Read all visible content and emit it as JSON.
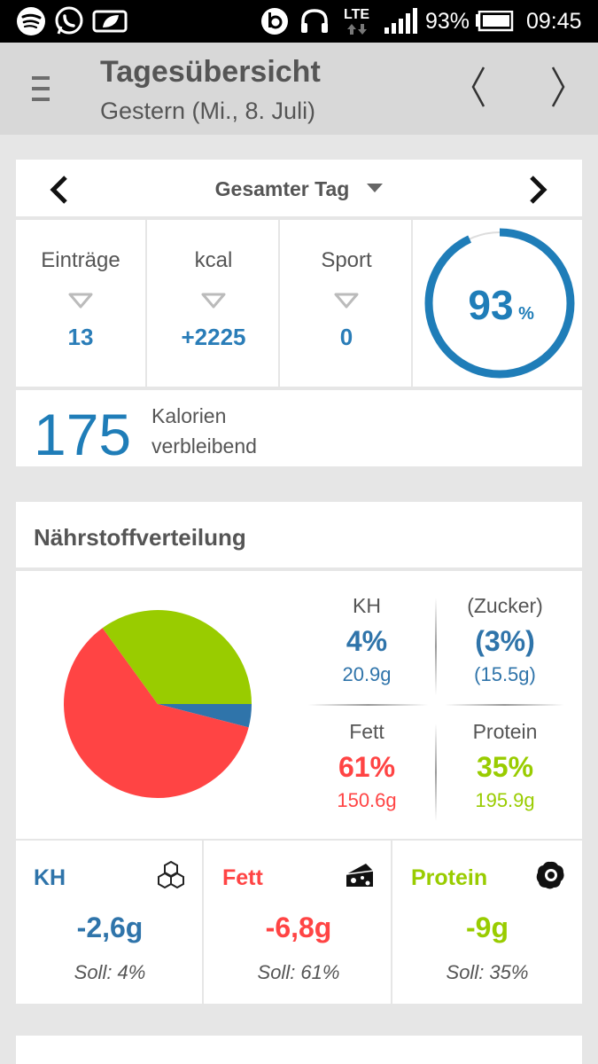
{
  "status_bar": {
    "battery": "93%",
    "time": "09:45",
    "network": "LTE"
  },
  "header": {
    "title": "Tagesübersicht",
    "subtitle": "Gestern (Mi., 8. Juli)"
  },
  "day_selector": {
    "label": "Gesamter Tag"
  },
  "stats": [
    {
      "label": "Einträge",
      "value": "13"
    },
    {
      "label": "kcal",
      "value": "+2225"
    },
    {
      "label": "Sport",
      "value": "0"
    }
  ],
  "progress": {
    "value": "93",
    "unit": "%",
    "fraction": 0.93
  },
  "remaining": {
    "value": "175",
    "line1": "Kalorien",
    "line2": "verbleibend"
  },
  "nutrition": {
    "title": "Nährstoffverteilung",
    "macros": {
      "kh": {
        "label": "KH",
        "pct": "4%",
        "grams": "20.9g"
      },
      "zucker": {
        "label": "(Zucker)",
        "pct": "(3%)",
        "grams": "(15.5g)"
      },
      "fett": {
        "label": "Fett",
        "pct": "61%",
        "grams": "150.6g"
      },
      "protein": {
        "label": "Protein",
        "pct": "35%",
        "grams": "195.9g"
      }
    }
  },
  "chart_data": {
    "type": "pie",
    "categories": [
      "KH",
      "Fett",
      "Protein"
    ],
    "values": [
      4,
      61,
      35
    ],
    "colors": [
      "#2f74aa",
      "#ff4444",
      "#99cc00"
    ]
  },
  "targets": [
    {
      "name": "KH",
      "value": "-2,6g",
      "soll": "Soll: 4%",
      "color": "#2f74aa",
      "icon": "molecule-icon"
    },
    {
      "name": "Fett",
      "value": "-6,8g",
      "soll": "Soll: 61%",
      "color": "#ff4444",
      "icon": "cheese-icon"
    },
    {
      "name": "Protein",
      "value": "-9g",
      "soll": "Soll: 35%",
      "color": "#99cc00",
      "icon": "egg-icon"
    }
  ],
  "colors": {
    "accent_blue": "#1f7db8",
    "kh": "#2f74aa",
    "fett": "#ff4444",
    "protein": "#99cc00"
  }
}
